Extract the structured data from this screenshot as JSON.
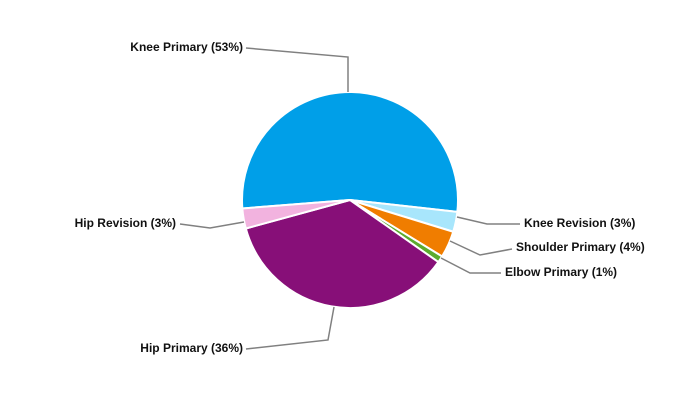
{
  "chart_data": {
    "type": "pie",
    "categories": [
      "Knee Primary (53%)",
      "Knee Revision (3%)",
      "Shoulder Primary (4%)",
      "Elbow Primary (1%)",
      "Hip Primary (36%)",
      "Hip Revision (3%)"
    ],
    "values": [
      53,
      3,
      4,
      1,
      36,
      3
    ],
    "colors": [
      "#009fe8",
      "#a8e6fc",
      "#f07d00",
      "#5cab2e",
      "#870f78",
      "#f2b3df"
    ]
  }
}
